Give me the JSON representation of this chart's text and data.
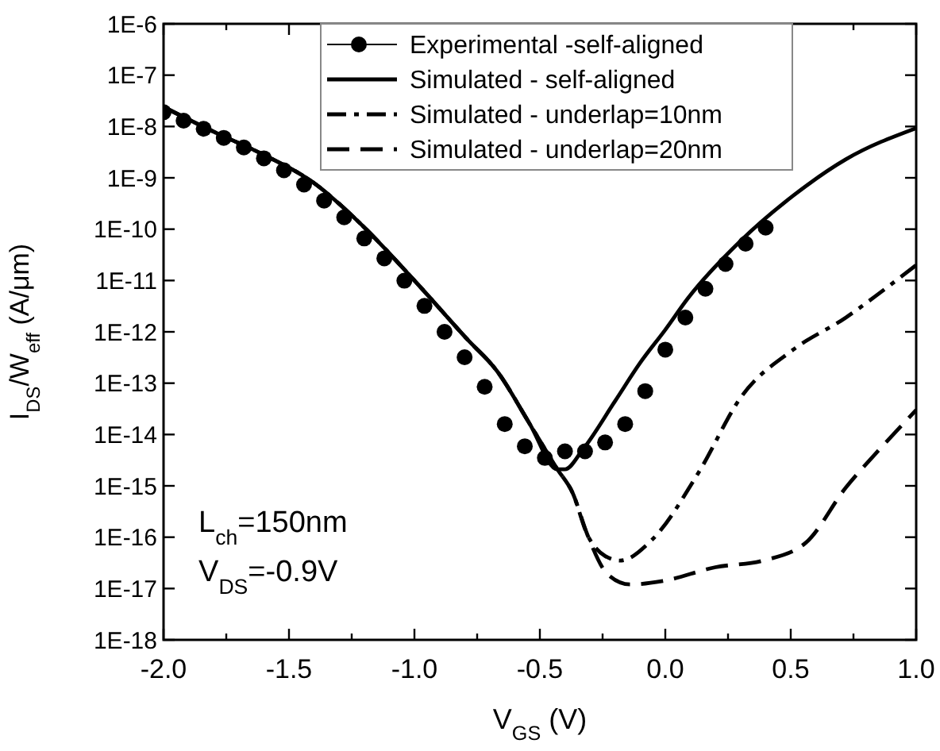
{
  "chart_data": {
    "type": "line",
    "xlabel": "V$_{GS}$ (V)",
    "ylabel": "I$_{DS}$/W$_{eff}$ (A/μm)",
    "log": "y",
    "xlim": [
      -2.0,
      1.0
    ],
    "ylim": [
      1e-18,
      1e-06
    ],
    "xticks": [
      {
        "value": -2,
        "label": "-2.0"
      },
      {
        "value": -1.75,
        "label": null
      },
      {
        "value": -1.5,
        "label": "-1.5"
      },
      {
        "value": -1.25,
        "label": null
      },
      {
        "value": -1,
        "label": "-1.0"
      },
      {
        "value": -0.75,
        "label": null
      },
      {
        "value": -0.5,
        "label": "-0.5"
      },
      {
        "value": -0.25,
        "label": null
      },
      {
        "value": 0,
        "label": "0.0"
      },
      {
        "value": 0.25,
        "label": null
      },
      {
        "value": 0.5,
        "label": "0.5"
      },
      {
        "value": 0.75,
        "label": null
      },
      {
        "value": 1,
        "label": "1.0"
      }
    ],
    "yticks": [
      {
        "value": 1e-18,
        "label": "1E-18"
      },
      {
        "value": 1e-17,
        "label": "1E-17"
      },
      {
        "value": 1e-16,
        "label": "1E-16"
      },
      {
        "value": 1e-15,
        "label": "1E-15"
      },
      {
        "value": 1e-14,
        "label": "1E-14"
      },
      {
        "value": 1e-13,
        "label": "1E-13"
      },
      {
        "value": 1e-12,
        "label": "1E-12"
      },
      {
        "value": 1e-11,
        "label": "1E-11"
      },
      {
        "value": 1e-10,
        "label": "1E-10"
      },
      {
        "value": 1e-09,
        "label": "1E-9"
      },
      {
        "value": 1e-08,
        "label": "1E-8"
      },
      {
        "value": 1e-07,
        "label": "1E-7"
      },
      {
        "value": 1e-06,
        "label": "1E-6"
      }
    ],
    "grid": false,
    "legend": "top right",
    "series": [
      {
        "name": "Experimental -self-aligned",
        "type": "scatter",
        "marker": "circle",
        "color": "#000000",
        "x": [
          -2.0,
          -1.92,
          -1.84,
          -1.76,
          -1.68,
          -1.6,
          -1.52,
          -1.44,
          -1.36,
          -1.28,
          -1.2,
          -1.12,
          -1.04,
          -0.96,
          -0.88,
          -0.8,
          -0.72,
          -0.64,
          -0.56,
          -0.48,
          -0.4,
          -0.32,
          -0.24,
          -0.16,
          -0.08,
          0.0,
          0.08,
          0.16,
          0.24,
          0.32,
          0.4
        ],
        "values": [
          1.9e-08,
          1.3e-08,
          9e-09,
          6e-09,
          3.9e-09,
          2.4e-09,
          1.4e-09,
          7.4e-10,
          3.6e-10,
          1.7e-10,
          6.6e-11,
          2.7e-11,
          9.9e-12,
          3.2e-12,
          1e-12,
          3.2e-13,
          8.5e-14,
          1.6e-14,
          5.9e-15,
          3.5e-15,
          4.7e-15,
          4.7e-15,
          7e-15,
          1.6e-14,
          7e-14,
          4.5e-13,
          1.9e-12,
          6.9e-12,
          2.1e-11,
          5.2e-11,
          1.07e-10
        ]
      },
      {
        "name": "Simulated - self-aligned",
        "line_style": "solid",
        "color": "#000000",
        "x": [
          -2.0,
          -1.8,
          -1.6,
          -1.4,
          -1.22,
          -1.0,
          -0.79,
          -0.67,
          -0.54,
          -0.43,
          -0.4,
          -0.33,
          -0.2,
          -0.1,
          0.0,
          0.09,
          0.3,
          0.51,
          0.72,
          1.0
        ],
        "values": [
          2.4e-08,
          7.9e-09,
          2.8e-09,
          7.9e-10,
          1.35e-10,
          1e-11,
          7.2e-13,
          1.7e-13,
          1.6e-14,
          2.1e-15,
          2.1e-15,
          5e-15,
          4.5e-14,
          2.5e-13,
          1.1e-12,
          4.5e-12,
          5.9e-11,
          4.5e-10,
          2.3e-09,
          9.3e-09
        ]
      },
      {
        "name": "Simulated - underlap=10nm",
        "line_style": "dashdot",
        "color": "#000000",
        "x": [
          -2.0,
          -1.8,
          -1.6,
          -1.4,
          -1.22,
          -1.0,
          -0.79,
          -0.67,
          -0.54,
          -0.43,
          -0.37,
          -0.31,
          -0.24,
          -0.18,
          -0.055,
          0.135,
          0.3,
          0.51,
          0.72,
          0.85,
          1.0
        ],
        "values": [
          2.4e-08,
          7.9e-09,
          2.8e-09,
          7.9e-10,
          1.35e-10,
          1e-11,
          7.2e-13,
          1.7e-13,
          1.6e-14,
          2.1e-15,
          7.4e-16,
          1.1e-16,
          4.3e-17,
          3.5e-17,
          8.7e-17,
          1.9e-15,
          5.2e-14,
          4.5e-13,
          1.9e-12,
          5.5e-12,
          2e-11
        ]
      },
      {
        "name": "Simulated - underlap=20nm",
        "line_style": "dashed",
        "color": "#000000",
        "x": [
          -2.0,
          -1.8,
          -1.6,
          -1.4,
          -1.22,
          -1.0,
          -0.79,
          -0.67,
          -0.54,
          -0.43,
          -0.37,
          -0.31,
          -0.23,
          -0.14,
          -0.01,
          0.2,
          0.39,
          0.56,
          0.72,
          0.85,
          1.0
        ],
        "values": [
          2.4e-08,
          7.9e-09,
          2.8e-09,
          7.9e-10,
          1.35e-10,
          1e-11,
          7.2e-13,
          1.7e-13,
          1.6e-14,
          2.1e-15,
          7.4e-16,
          1.1e-16,
          1.9e-17,
          1.2e-17,
          1.4e-17,
          2.6e-17,
          3.5e-17,
          7.8e-17,
          9.3e-16,
          4.9e-15,
          3e-14
        ]
      }
    ],
    "annotations": [
      "L$_{ch}$=150nm",
      "V$_{DS}$=-0.9V"
    ]
  }
}
